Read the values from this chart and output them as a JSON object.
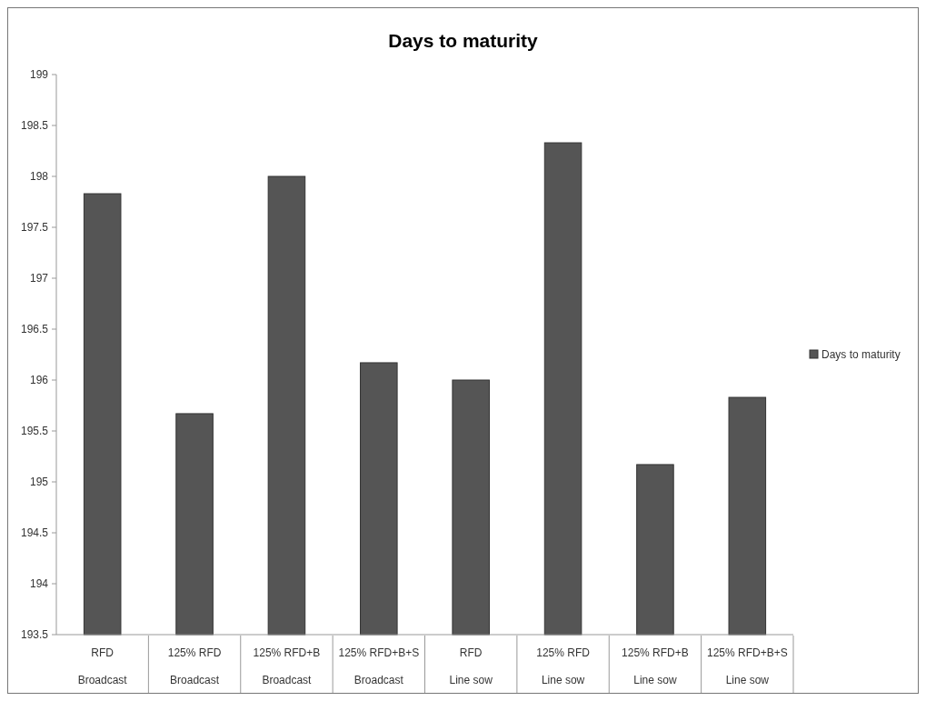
{
  "chart_data": {
    "type": "bar",
    "title": "Days to maturity",
    "categories": [
      "RFD\nBroadcast",
      "125% RFD\nBroadcast",
      "125% RFD+B\nBroadcast",
      "125% RFD+B+S\nBroadcast",
      "RFD\nLine sow",
      "125% RFD\nLine sow",
      "125% RFD+B\nLine sow",
      "125% RFD+B+S\nLine sow"
    ],
    "series": [
      {
        "name": "Days to maturity",
        "color": "#555555",
        "values": [
          197.83,
          195.67,
          198,
          196.17,
          196,
          198.33,
          195.17,
          195.83
        ]
      }
    ],
    "ylim": [
      193.5,
      199
    ],
    "yticks": [
      193.5,
      194,
      194.5,
      195,
      195.5,
      196,
      196.5,
      197,
      197.5,
      198,
      198.5,
      199
    ],
    "grid": false,
    "legend": "right"
  }
}
